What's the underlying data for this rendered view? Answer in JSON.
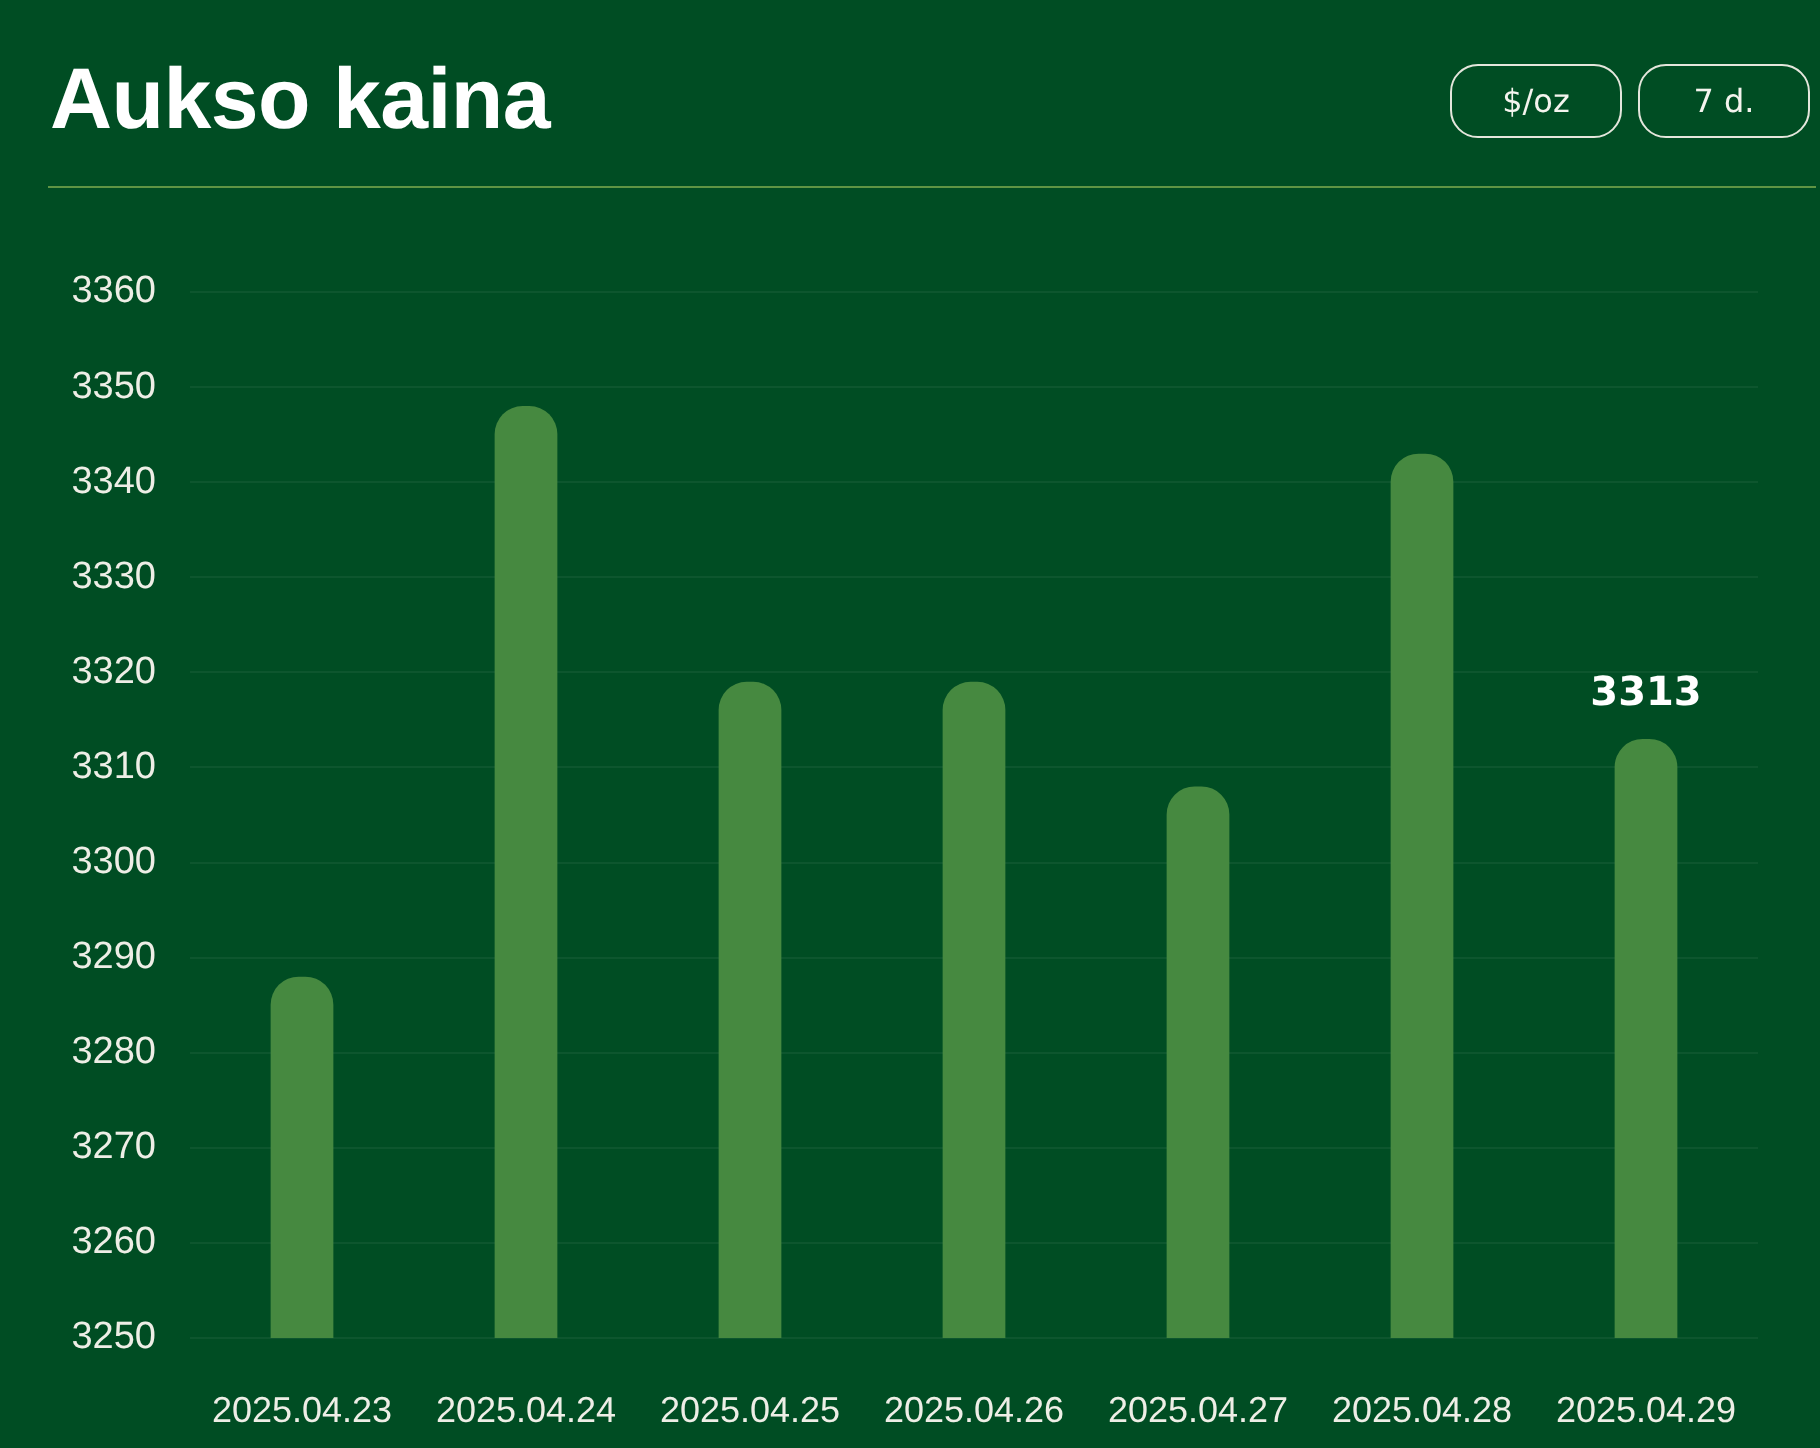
{
  "chart_data": {
    "type": "bar",
    "title": "Aukso kaina",
    "annotations": [
      "$/oz",
      "7 d."
    ],
    "categories": [
      "2025.04.23",
      "2025.04.24",
      "2025.04.25",
      "2025.04.26",
      "2025.04.27",
      "2025.04.28",
      "2025.04.29"
    ],
    "values": [
      3288,
      3348,
      3319,
      3319,
      3308,
      3343,
      3313
    ],
    "color": "#468940",
    "value_labels": [
      null,
      null,
      null,
      null,
      null,
      null,
      "3313"
    ],
    "ylim": [
      3250,
      3360
    ],
    "yticks": [
      3250,
      3260,
      3270,
      3280,
      3290,
      3300,
      3310,
      3320,
      3330,
      3340,
      3350,
      3360
    ],
    "grid": "y"
  }
}
